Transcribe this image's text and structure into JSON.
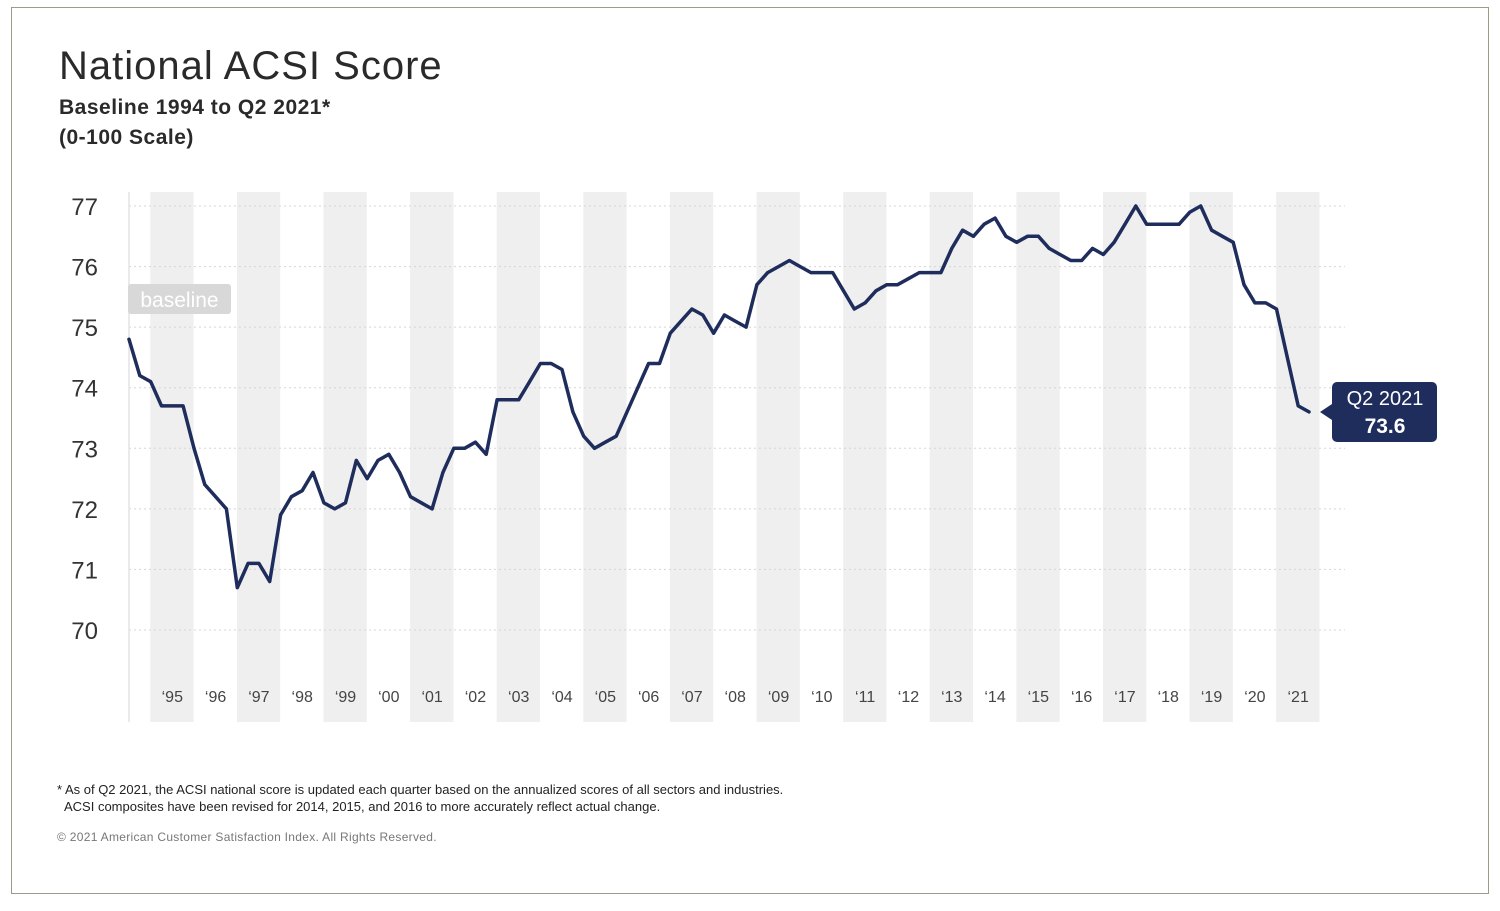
{
  "header": {
    "title": "National ACSI Score",
    "subtitle": "Baseline 1994 to Q2 2021*",
    "scale_note": "(0-100 Scale)"
  },
  "footer": {
    "footnote_line1": "* As of Q2 2021, the ACSI national score is updated each quarter based on the annualized scores of all sectors and industries.",
    "footnote_line2": "ACSI composites have been revised for 2014, 2015, and 2016 to more accurately reflect actual change.",
    "copyright": "© 2021 American Customer Satisfaction Index. All Rights Reserved."
  },
  "colors": {
    "line": "#1f2d5c",
    "band": "#efefef",
    "grid": "#d5d5d5",
    "baseline_tag": "#d8d8d8",
    "callout": "#1f2d5c"
  },
  "chart_data": {
    "type": "line",
    "title": "National ACSI Score",
    "subtitle": "Baseline 1994 to Q2 2021*",
    "ylabel": "",
    "xlabel": "",
    "ylim": [
      70,
      77
    ],
    "y_ticks": [
      "77",
      "76",
      "75",
      "74",
      "73",
      "72",
      "71",
      "70"
    ],
    "x_tick_labels": [
      "‘95",
      "‘96",
      "‘97",
      "‘98",
      "‘99",
      "‘00",
      "‘01",
      "‘02",
      "‘03",
      "‘04",
      "‘05",
      "‘06",
      "‘07",
      "‘08",
      "‘09",
      "‘10",
      "‘11",
      "‘12",
      "‘13",
      "‘14",
      "‘15",
      "‘16",
      "‘17",
      "‘18",
      "‘19",
      "‘20",
      "‘21"
    ],
    "grid": true,
    "baseline_label": "baseline",
    "callout": {
      "period": "Q2 2021",
      "value": "73.6"
    },
    "series": [
      {
        "x": [
          1994.0,
          1994.25,
          1994.5,
          1994.75,
          1995.0,
          1995.25,
          1995.5,
          1995.75,
          1996.0,
          1996.25,
          1996.5,
          1996.75,
          1997.0,
          1997.25,
          1997.5,
          1997.75,
          1998.0,
          1998.25,
          1998.5,
          1998.75,
          1999.0,
          1999.25,
          1999.5,
          1999.75,
          2000.0,
          2000.25,
          2000.5,
          2000.75,
          2001.0,
          2001.25,
          2001.5,
          2001.75,
          2002.0,
          2002.25,
          2002.5,
          2002.75,
          2003.0,
          2003.25,
          2003.5,
          2003.75,
          2004.0,
          2004.25,
          2004.5,
          2004.75,
          2005.0,
          2005.25,
          2005.5,
          2005.75,
          2006.0,
          2006.25,
          2006.5,
          2006.75,
          2007.0,
          2007.25,
          2007.5,
          2007.75,
          2008.0,
          2008.25,
          2008.5,
          2008.75,
          2009.0,
          2009.25,
          2009.5,
          2009.75,
          2010.0,
          2010.25,
          2010.5,
          2010.75,
          2011.0,
          2011.25,
          2011.5,
          2011.75,
          2012.0,
          2012.25,
          2012.5,
          2012.75,
          2013.0,
          2013.25,
          2013.5,
          2013.75,
          2014.0,
          2014.25,
          2014.5,
          2014.75,
          2015.0,
          2015.25,
          2015.5,
          2015.75,
          2016.0,
          2016.25,
          2016.5,
          2016.75,
          2017.0,
          2017.25,
          2017.5,
          2017.75,
          2018.0,
          2018.25,
          2018.5,
          2018.75,
          2019.0,
          2019.25,
          2019.5,
          2019.75,
          2020.0,
          2020.25,
          2020.5,
          2020.75,
          2021.0,
          2021.25
        ],
        "values": [
          74.8,
          74.2,
          74.1,
          73.7,
          73.7,
          73.7,
          73.0,
          72.4,
          72.2,
          72.0,
          70.7,
          71.1,
          71.1,
          70.8,
          71.9,
          72.2,
          72.3,
          72.6,
          72.1,
          72.0,
          72.1,
          72.8,
          72.5,
          72.8,
          72.9,
          72.6,
          72.2,
          72.1,
          72.0,
          72.6,
          73.0,
          73.0,
          73.1,
          72.9,
          73.8,
          73.8,
          73.8,
          74.1,
          74.4,
          74.4,
          74.3,
          73.6,
          73.2,
          73.0,
          73.1,
          73.2,
          73.6,
          74.0,
          74.4,
          74.4,
          74.9,
          75.1,
          75.3,
          75.2,
          74.9,
          75.2,
          75.1,
          75.0,
          75.7,
          75.9,
          76.0,
          76.1,
          76.0,
          75.9,
          75.9,
          75.9,
          75.6,
          75.3,
          75.4,
          75.6,
          75.7,
          75.7,
          75.8,
          75.9,
          75.9,
          75.9,
          76.3,
          76.6,
          76.5,
          76.7,
          76.8,
          76.5,
          76.4,
          76.5,
          76.5,
          76.3,
          76.2,
          76.1,
          76.1,
          76.3,
          76.2,
          76.4,
          76.7,
          77.0,
          76.7,
          76.7,
          76.7,
          76.7,
          76.9,
          77.0,
          76.6,
          76.5,
          76.4,
          75.7,
          75.4,
          75.4,
          75.3,
          74.5,
          73.7,
          73.6
        ]
      }
    ]
  }
}
